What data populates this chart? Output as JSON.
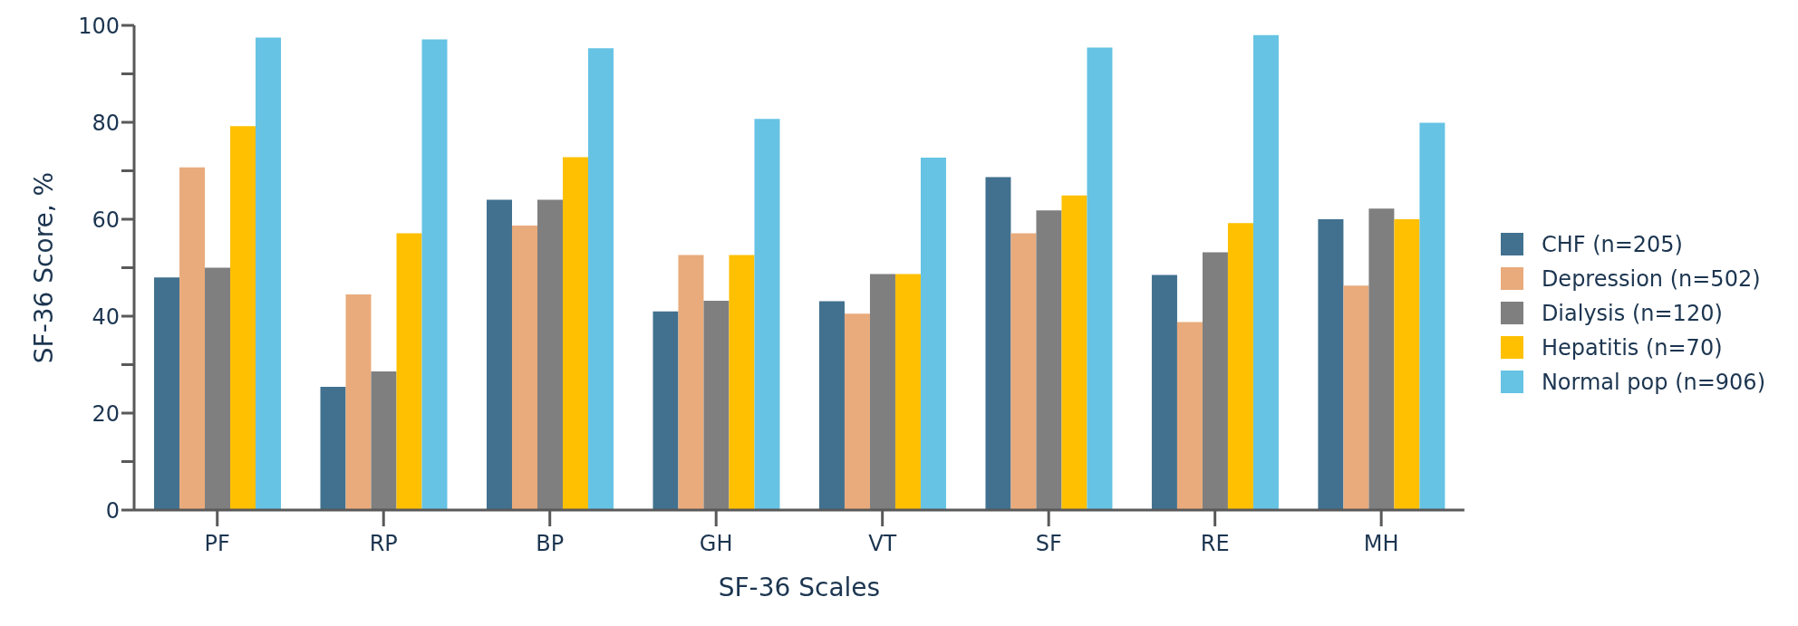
{
  "chart_data": {
    "type": "bar",
    "xlabel": "SF-36 Scales",
    "ylabel": "SF-36 Score, %",
    "categories": [
      "PF",
      "RP",
      "BP",
      "GH",
      "VT",
      "SF",
      "RE",
      "MH"
    ],
    "series": [
      {
        "name": "CHF (n=205)",
        "color": "#41718f",
        "values": [
          48,
          25.4,
          64,
          41,
          43.1,
          68.7,
          48.5,
          60
        ]
      },
      {
        "name": "Depression (n=502)",
        "color": "#e9ab7c",
        "values": [
          70.7,
          44.5,
          58.7,
          52.6,
          40.5,
          57.1,
          38.8,
          46.3
        ]
      },
      {
        "name": "Dialysis (n=120)",
        "color": "#7f7f7f",
        "values": [
          50,
          28.6,
          64,
          43.2,
          48.7,
          61.8,
          53.2,
          62.2
        ]
      },
      {
        "name": "Hepatitis (n=70)",
        "color": "#fec000",
        "values": [
          79.2,
          57.1,
          72.8,
          52.6,
          48.7,
          64.9,
          59.2,
          60
        ]
      },
      {
        "name": "Normal pop (n=906)",
        "color": "#66c3e4",
        "values": [
          97.5,
          97.1,
          95.3,
          80.7,
          72.7,
          95.4,
          98,
          79.9
        ]
      }
    ],
    "ylim": [
      0,
      100
    ],
    "yticks": [
      0,
      {
        "value": 10,
        "label": null
      },
      20,
      {
        "value": 30,
        "label": null
      },
      40,
      {
        "value": 50,
        "label": null
      },
      60,
      {
        "value": 70,
        "label": null
      },
      80,
      {
        "value": 90,
        "label": null
      },
      100
    ],
    "legend": "right"
  }
}
